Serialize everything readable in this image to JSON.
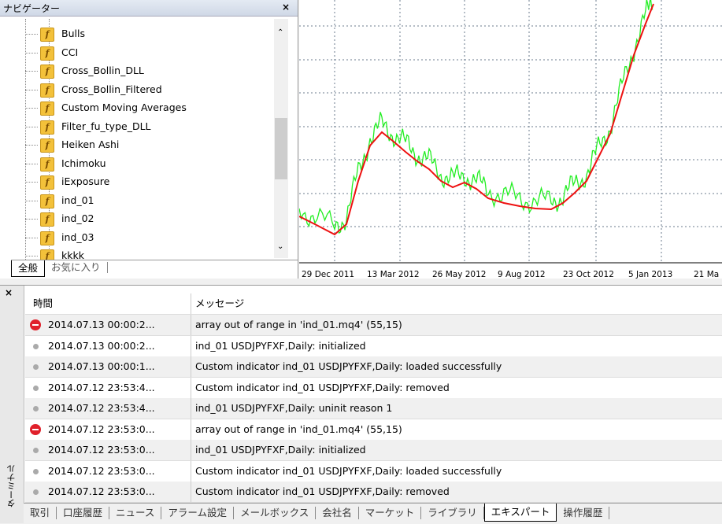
{
  "navigator": {
    "title": "ナビゲーター",
    "close": "×",
    "items": [
      "Bulls",
      "CCI",
      "Cross_Bollin_DLL",
      "Cross_Bollin_Filtered",
      "Custom Moving Averages",
      "Filter_fu_type_DLL",
      "Heiken Ashi",
      "Ichimoku",
      "iExposure",
      "ind_01",
      "ind_02",
      "ind_03",
      "kkkk"
    ],
    "tabs": [
      "全般",
      "お気に入り"
    ]
  },
  "chart": {
    "x_labels": [
      "29 Dec 2011",
      "13 Mar 2012",
      "26 May 2012",
      "9 Aug 2012",
      "23 Oct 2012",
      "5 Jan 2013",
      "21 Ma"
    ]
  },
  "terminal": {
    "side_label": "ターミナル",
    "close": "×",
    "columns": [
      "時間",
      "メッセージ"
    ],
    "rows": [
      {
        "level": "error",
        "time": "2014.07.13 00:00:2...",
        "message": "array out of range in 'ind_01.mq4' (55,15)"
      },
      {
        "level": "info",
        "time": "2014.07.13 00:00:2...",
        "message": "ind_01 USDJPYFXF,Daily: initialized"
      },
      {
        "level": "info",
        "time": "2014.07.13 00:00:1...",
        "message": "Custom indicator ind_01 USDJPYFXF,Daily: loaded successfully"
      },
      {
        "level": "info",
        "time": "2014.07.12 23:53:4...",
        "message": "Custom indicator ind_01 USDJPYFXF,Daily: removed"
      },
      {
        "level": "info",
        "time": "2014.07.12 23:53:4...",
        "message": "ind_01 USDJPYFXF,Daily: uninit reason 1"
      },
      {
        "level": "error",
        "time": "2014.07.12 23:53:0...",
        "message": "array out of range in 'ind_01.mq4' (55,15)"
      },
      {
        "level": "info",
        "time": "2014.07.12 23:53:0...",
        "message": "ind_01 USDJPYFXF,Daily: initialized"
      },
      {
        "level": "info",
        "time": "2014.07.12 23:53:0...",
        "message": "Custom indicator ind_01 USDJPYFXF,Daily: loaded successfully"
      },
      {
        "level": "info",
        "time": "2014.07.12 23:53:0...",
        "message": "Custom indicator ind_01 USDJPYFXF,Daily: removed"
      }
    ],
    "tabs": [
      "取引",
      "口座履歴",
      "ニュース",
      "アラーム設定",
      "メールボックス",
      "会社名",
      "マーケット",
      "ライブラリ",
      "エキスパート",
      "操作履歴"
    ],
    "active_tab": 8
  }
}
